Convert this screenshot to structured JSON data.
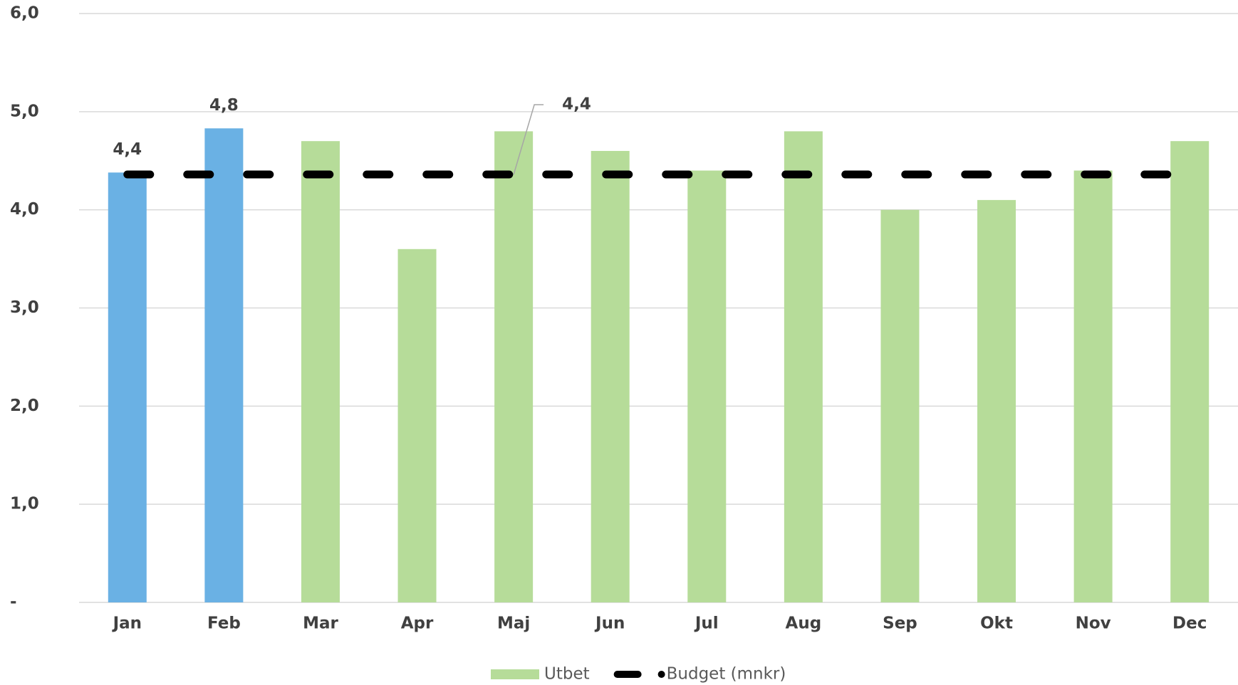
{
  "chart_data": {
    "type": "bar",
    "categories": [
      "Jan",
      "Feb",
      "Mar",
      "Apr",
      "Maj",
      "Jun",
      "Jul",
      "Aug",
      "Sep",
      "Okt",
      "Nov",
      "Dec"
    ],
    "series": [
      {
        "name": "Utbet",
        "type": "bar",
        "color": "#b6dc99",
        "colors": [
          "#6ab1e4",
          "#6ab1e4",
          "#b6dc99",
          "#b6dc99",
          "#b6dc99",
          "#b6dc99",
          "#b6dc99",
          "#b6dc99",
          "#b6dc99",
          "#b6dc99",
          "#b6dc99",
          "#b6dc99"
        ],
        "values": [
          4.38,
          4.83,
          4.7,
          3.6,
          4.8,
          4.6,
          4.4,
          4.8,
          4.0,
          4.1,
          4.4,
          4.7
        ],
        "value_labels": [
          "4,4",
          "4,8",
          null,
          null,
          null,
          null,
          null,
          null,
          null,
          null,
          null,
          null
        ]
      },
      {
        "name": "Budget (mnkr)",
        "type": "line",
        "color": "#000000",
        "dashed": true,
        "values": [
          4.36,
          4.36,
          4.36,
          4.36,
          4.36,
          4.36,
          4.36,
          4.36,
          4.36,
          4.36,
          4.36,
          4.36
        ],
        "value_labels": [
          null,
          null,
          null,
          null,
          "4,4",
          null,
          null,
          null,
          null,
          null,
          null,
          null
        ]
      }
    ],
    "ylim": [
      0,
      6
    ],
    "yticks": [
      {
        "value": 0,
        "label": "-"
      },
      {
        "value": 1,
        "label": "1,0"
      },
      {
        "value": 2,
        "label": "2,0"
      },
      {
        "value": 3,
        "label": "3,0"
      },
      {
        "value": 4,
        "label": "4,0"
      },
      {
        "value": 5,
        "label": "5,0"
      },
      {
        "value": 6,
        "label": "6,0"
      }
    ],
    "grid": true,
    "legend": "bottom"
  }
}
